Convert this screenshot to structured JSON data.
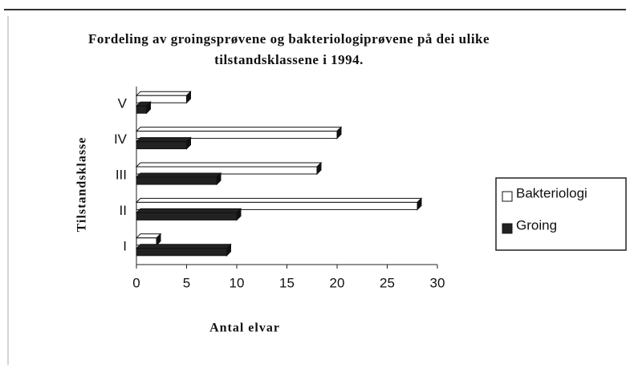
{
  "chart_data": {
    "type": "bar",
    "orientation": "horizontal",
    "title": "Fordeling av groingsprøvene og bakteriologiprøvene på dei ulike tilstandsklassene i 1994.",
    "x_label": "Antal elvar",
    "y_label": "Tilstandsklasse",
    "categories": [
      "I",
      "II",
      "III",
      "IV",
      "V"
    ],
    "series": [
      {
        "name": "Bakteriologi",
        "color": "#ffffff",
        "values": [
          2,
          28,
          18,
          20,
          5
        ]
      },
      {
        "name": "Groing",
        "color": "#222222",
        "values": [
          9,
          10,
          8,
          5,
          1
        ]
      }
    ],
    "xlim": [
      0,
      30
    ],
    "xticks": [
      0,
      5,
      10,
      15,
      20,
      25,
      30
    ],
    "legend": "right"
  }
}
